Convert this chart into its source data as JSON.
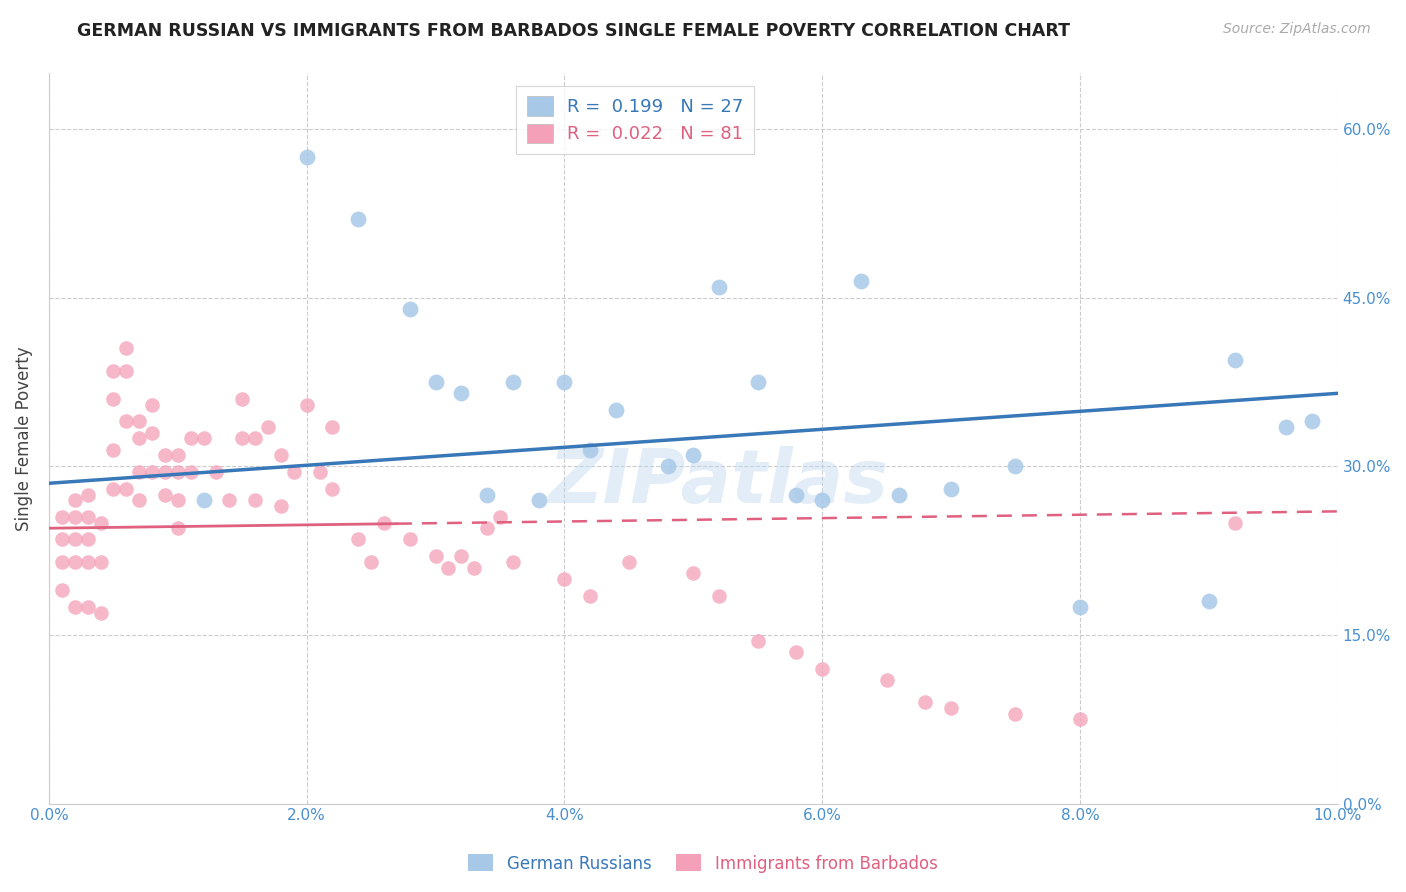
{
  "title": "GERMAN RUSSIAN VS IMMIGRANTS FROM BARBADOS SINGLE FEMALE POVERTY CORRELATION CHART",
  "source": "Source: ZipAtlas.com",
  "ylabel": "Single Female Poverty",
  "ytick_vals": [
    0.0,
    0.15,
    0.3,
    0.45,
    0.6
  ],
  "xtick_vals": [
    0.0,
    0.02,
    0.04,
    0.06,
    0.08,
    0.1
  ],
  "xlim": [
    0.0,
    0.1
  ],
  "ylim": [
    0.0,
    0.65
  ],
  "r_blue": 0.199,
  "n_blue": 27,
  "r_pink": 0.022,
  "n_pink": 81,
  "blue_color": "#a8c8e8",
  "pink_color": "#f4a0b8",
  "blue_line_color": "#3878b8",
  "pink_line_color": "#e06080",
  "watermark": "ZIPatlas",
  "blue_points_x": [
    0.012,
    0.02,
    0.024,
    0.028,
    0.03,
    0.032,
    0.034,
    0.036,
    0.038,
    0.04,
    0.042,
    0.044,
    0.048,
    0.05,
    0.052,
    0.055,
    0.058,
    0.06,
    0.063,
    0.066,
    0.07,
    0.075,
    0.08,
    0.09,
    0.092,
    0.096,
    0.098
  ],
  "blue_points_y": [
    0.27,
    0.575,
    0.52,
    0.44,
    0.375,
    0.365,
    0.275,
    0.375,
    0.27,
    0.375,
    0.315,
    0.35,
    0.3,
    0.31,
    0.46,
    0.375,
    0.275,
    0.27,
    0.465,
    0.275,
    0.28,
    0.3,
    0.175,
    0.18,
    0.395,
    0.335,
    0.34
  ],
  "pink_points_x": [
    0.001,
    0.001,
    0.001,
    0.001,
    0.002,
    0.002,
    0.002,
    0.002,
    0.002,
    0.003,
    0.003,
    0.003,
    0.003,
    0.003,
    0.004,
    0.004,
    0.004,
    0.005,
    0.005,
    0.005,
    0.005,
    0.006,
    0.006,
    0.006,
    0.006,
    0.007,
    0.007,
    0.007,
    0.007,
    0.008,
    0.008,
    0.008,
    0.009,
    0.009,
    0.009,
    0.01,
    0.01,
    0.01,
    0.01,
    0.011,
    0.011,
    0.012,
    0.013,
    0.014,
    0.015,
    0.015,
    0.016,
    0.016,
    0.017,
    0.018,
    0.018,
    0.019,
    0.02,
    0.021,
    0.022,
    0.022,
    0.024,
    0.025,
    0.026,
    0.028,
    0.03,
    0.031,
    0.032,
    0.033,
    0.034,
    0.035,
    0.036,
    0.04,
    0.042,
    0.045,
    0.05,
    0.052,
    0.055,
    0.058,
    0.06,
    0.065,
    0.068,
    0.07,
    0.075,
    0.08,
    0.092
  ],
  "pink_points_y": [
    0.255,
    0.235,
    0.215,
    0.19,
    0.27,
    0.255,
    0.235,
    0.215,
    0.175,
    0.275,
    0.255,
    0.235,
    0.215,
    0.175,
    0.25,
    0.215,
    0.17,
    0.385,
    0.36,
    0.315,
    0.28,
    0.405,
    0.385,
    0.34,
    0.28,
    0.34,
    0.325,
    0.295,
    0.27,
    0.355,
    0.33,
    0.295,
    0.31,
    0.295,
    0.275,
    0.31,
    0.295,
    0.27,
    0.245,
    0.325,
    0.295,
    0.325,
    0.295,
    0.27,
    0.36,
    0.325,
    0.325,
    0.27,
    0.335,
    0.31,
    0.265,
    0.295,
    0.355,
    0.295,
    0.335,
    0.28,
    0.235,
    0.215,
    0.25,
    0.235,
    0.22,
    0.21,
    0.22,
    0.21,
    0.245,
    0.255,
    0.215,
    0.2,
    0.185,
    0.215,
    0.205,
    0.185,
    0.145,
    0.135,
    0.12,
    0.11,
    0.09,
    0.085,
    0.08,
    0.075,
    0.25
  ]
}
